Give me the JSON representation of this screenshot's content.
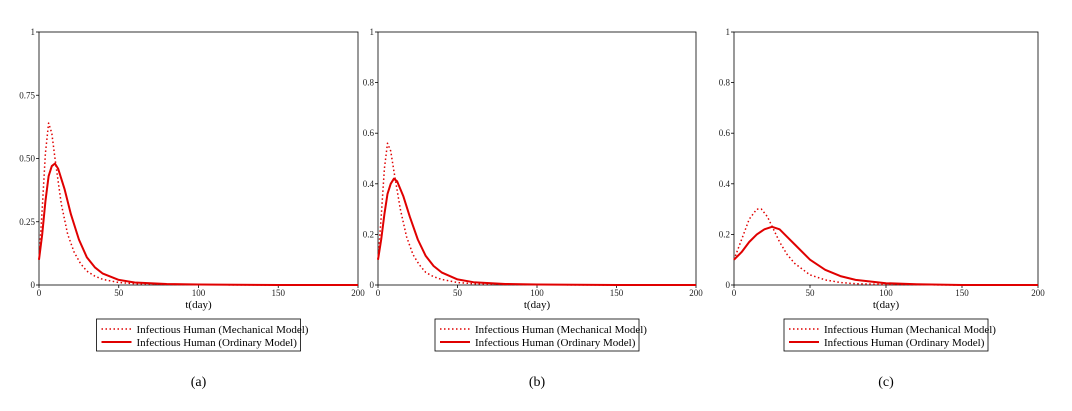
{
  "colors": {
    "series": "#e00000",
    "axis": "#000000",
    "frame": "#000000"
  },
  "chart_data": [
    {
      "type": "line",
      "panel": "(a)",
      "xlabel": "t(day)",
      "xlim": [
        0,
        200
      ],
      "ylim": [
        0,
        1
      ],
      "xticks": [
        0,
        50,
        100,
        150,
        200
      ],
      "yticks": [
        0,
        0.25,
        0.5,
        0.75,
        1
      ],
      "ytick_labels": [
        "0",
        "0.25",
        "0.50",
        "0.75",
        "1"
      ],
      "legend": "below",
      "series": [
        {
          "name": "Infectious Human (Mechanical Model)",
          "style": "dotted",
          "x": [
            0,
            2,
            4,
            6,
            8,
            10,
            14,
            18,
            22,
            26,
            30,
            35,
            40,
            50,
            60,
            80,
            100,
            150,
            200
          ],
          "y": [
            0.1,
            0.3,
            0.52,
            0.64,
            0.6,
            0.5,
            0.32,
            0.2,
            0.13,
            0.085,
            0.055,
            0.035,
            0.022,
            0.01,
            0.005,
            0.002,
            0.001,
            0.0,
            0.0
          ]
        },
        {
          "name": "Infectious Human (Ordinary Model)",
          "style": "solid",
          "x": [
            0,
            2,
            4,
            6,
            8,
            10,
            12,
            16,
            20,
            25,
            30,
            35,
            40,
            50,
            60,
            80,
            100,
            150,
            200
          ],
          "y": [
            0.1,
            0.2,
            0.33,
            0.43,
            0.47,
            0.48,
            0.46,
            0.38,
            0.28,
            0.18,
            0.11,
            0.07,
            0.045,
            0.02,
            0.01,
            0.004,
            0.002,
            0.0,
            0.0
          ]
        }
      ]
    },
    {
      "type": "line",
      "panel": "(b)",
      "xlabel": "t(day)",
      "xlim": [
        0,
        200
      ],
      "ylim": [
        0,
        1
      ],
      "xticks": [
        0,
        50,
        100,
        150,
        200
      ],
      "yticks": [
        0,
        0.2,
        0.4,
        0.6,
        0.8,
        1
      ],
      "ytick_labels": [
        "0",
        "0.2",
        "0.4",
        "0.6",
        "0.8",
        "1"
      ],
      "legend": "below",
      "series": [
        {
          "name": "Infectious Human (Mechanical Model)",
          "style": "dotted",
          "x": [
            0,
            2,
            4,
            6,
            8,
            10,
            14,
            18,
            22,
            26,
            30,
            35,
            40,
            50,
            60,
            80,
            100,
            150,
            200
          ],
          "y": [
            0.1,
            0.27,
            0.46,
            0.56,
            0.53,
            0.45,
            0.3,
            0.19,
            0.12,
            0.08,
            0.05,
            0.033,
            0.022,
            0.01,
            0.005,
            0.002,
            0.001,
            0.0,
            0.0
          ]
        },
        {
          "name": "Infectious Human (Ordinary Model)",
          "style": "solid",
          "x": [
            0,
            2,
            4,
            6,
            8,
            10,
            12,
            16,
            20,
            25,
            30,
            35,
            40,
            50,
            60,
            80,
            100,
            150,
            200
          ],
          "y": [
            0.1,
            0.18,
            0.28,
            0.36,
            0.4,
            0.42,
            0.41,
            0.35,
            0.27,
            0.18,
            0.115,
            0.075,
            0.05,
            0.022,
            0.011,
            0.004,
            0.002,
            0.0,
            0.0
          ]
        }
      ]
    },
    {
      "type": "line",
      "panel": "(c)",
      "xlabel": "t(day)",
      "xlim": [
        0,
        200
      ],
      "ylim": [
        0,
        1
      ],
      "xticks": [
        0,
        50,
        100,
        150,
        200
      ],
      "yticks": [
        0,
        0.2,
        0.4,
        0.6,
        0.8,
        1
      ],
      "ytick_labels": [
        "0",
        "0.2",
        "0.4",
        "0.6",
        "0.8",
        "1"
      ],
      "legend": "below",
      "series": [
        {
          "name": "Infectious Human (Mechanical Model)",
          "style": "dotted",
          "x": [
            0,
            5,
            10,
            15,
            18,
            22,
            26,
            30,
            35,
            40,
            50,
            60,
            70,
            80,
            100,
            120,
            150,
            200
          ],
          "y": [
            0.1,
            0.18,
            0.26,
            0.3,
            0.3,
            0.27,
            0.22,
            0.17,
            0.12,
            0.085,
            0.04,
            0.02,
            0.01,
            0.005,
            0.002,
            0.001,
            0.0,
            0.0
          ]
        },
        {
          "name": "Infectious Human (Ordinary Model)",
          "style": "solid",
          "x": [
            0,
            5,
            10,
            15,
            20,
            25,
            30,
            35,
            40,
            50,
            60,
            70,
            80,
            100,
            120,
            150,
            200
          ],
          "y": [
            0.1,
            0.13,
            0.17,
            0.2,
            0.22,
            0.23,
            0.22,
            0.19,
            0.16,
            0.1,
            0.06,
            0.035,
            0.02,
            0.007,
            0.003,
            0.0,
            0.0
          ]
        }
      ]
    }
  ]
}
